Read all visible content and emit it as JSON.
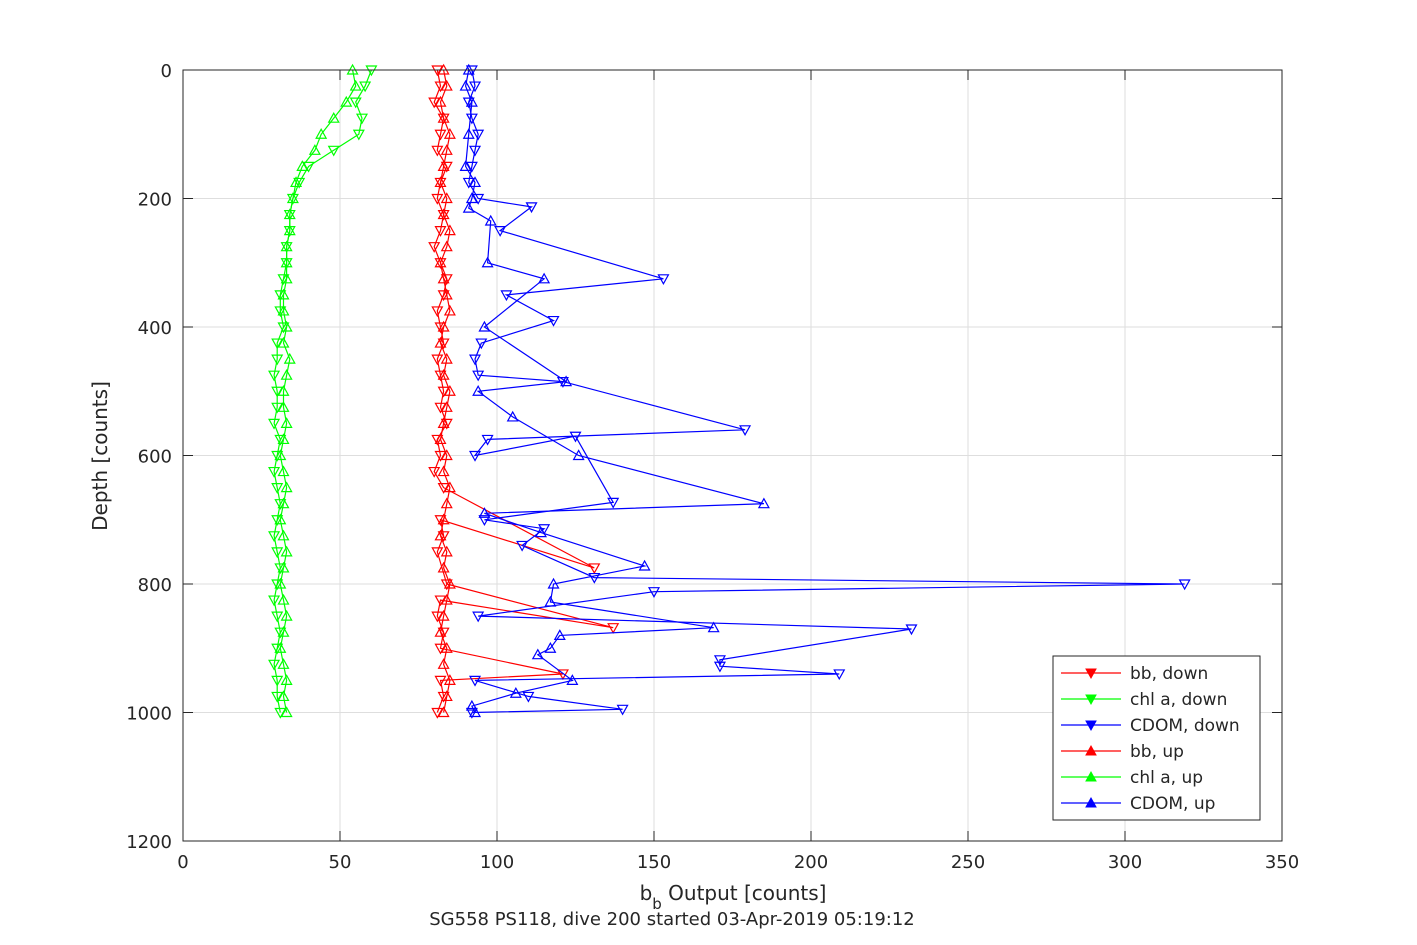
{
  "chart_data": {
    "type": "scatter",
    "title": "SG558 PS118, dive 200 started 03-Apr-2019 05:19:12",
    "xlabel_main": "b",
    "xlabel_sub": "b",
    "xlabel_rest": " Output [counts]",
    "ylabel": "Depth [counts]",
    "xlim": [
      0,
      350
    ],
    "ylim": [
      0,
      1200
    ],
    "y_reversed": true,
    "grid": true,
    "legend_position": "bottom-right",
    "x_ticks": [
      "0",
      "50",
      "100",
      "150",
      "200",
      "250",
      "300",
      "350"
    ],
    "y_ticks": [
      "0",
      "200",
      "400",
      "600",
      "800",
      "1000",
      "1200"
    ],
    "series": [
      {
        "name": "bb, down",
        "color": "#ff0000",
        "marker": "triangle-down",
        "x": [
          81,
          82,
          80,
          83,
          82,
          81,
          84,
          82,
          81,
          83,
          82,
          80,
          82,
          84,
          83,
          81,
          82,
          83,
          81,
          82,
          83,
          82,
          84,
          81,
          82,
          80,
          83,
          131,
          82,
          83,
          81,
          84,
          137,
          82,
          81,
          83,
          82,
          121,
          82,
          83,
          81
        ],
        "y": [
          0,
          25,
          50,
          75,
          100,
          125,
          150,
          175,
          200,
          225,
          250,
          275,
          300,
          325,
          350,
          375,
          400,
          425,
          450,
          475,
          500,
          525,
          550,
          575,
          600,
          625,
          650,
          775,
          700,
          725,
          750,
          800,
          868,
          825,
          850,
          875,
          900,
          940,
          950,
          975,
          1000
        ]
      },
      {
        "name": "chl a, down",
        "color": "#00ff00",
        "marker": "triangle-down",
        "x": [
          60,
          58,
          55,
          57,
          56,
          48,
          40,
          37,
          35,
          34,
          34,
          33,
          33,
          32,
          31,
          31,
          32,
          30,
          30,
          29,
          30,
          30,
          29,
          31,
          30,
          29,
          30,
          31,
          30,
          29,
          30,
          31,
          30,
          29,
          30,
          31,
          30,
          29,
          30,
          30,
          31
        ],
        "y": [
          0,
          25,
          50,
          75,
          100,
          125,
          150,
          175,
          200,
          225,
          250,
          275,
          300,
          325,
          350,
          375,
          400,
          425,
          450,
          475,
          500,
          525,
          550,
          575,
          600,
          625,
          650,
          675,
          700,
          725,
          750,
          775,
          800,
          825,
          850,
          875,
          900,
          925,
          950,
          975,
          1000
        ]
      },
      {
        "name": "CDOM, down",
        "color": "#0000ff",
        "marker": "triangle-down",
        "x": [
          92,
          93,
          91,
          92,
          94,
          93,
          92,
          91,
          94,
          111,
          101,
          153,
          103,
          118,
          95,
          93,
          94,
          121,
          179,
          97,
          93,
          125,
          137,
          96,
          115,
          108,
          131,
          319,
          150,
          94,
          232,
          171,
          171,
          209,
          93,
          110,
          140,
          92
        ],
        "y": [
          0,
          25,
          50,
          75,
          100,
          125,
          150,
          175,
          200,
          213,
          250,
          325,
          350,
          390,
          425,
          450,
          475,
          485,
          560,
          575,
          600,
          570,
          673,
          700,
          714,
          740,
          790,
          800,
          812,
          850,
          870,
          918,
          928,
          940,
          950,
          975,
          995,
          1000
        ]
      },
      {
        "name": "bb, up",
        "color": "#ff0000",
        "marker": "triangle-up",
        "x": [
          83,
          84,
          82,
          83,
          85,
          84,
          83,
          82,
          84,
          83,
          85,
          84,
          82,
          83,
          84,
          85,
          83,
          82,
          84,
          83,
          85,
          84,
          83,
          82,
          84,
          83,
          85,
          84,
          83,
          82,
          84,
          83,
          85,
          84,
          83,
          82,
          84,
          83,
          85,
          84,
          83
        ],
        "y": [
          0,
          25,
          50,
          75,
          100,
          125,
          150,
          175,
          200,
          225,
          250,
          275,
          300,
          325,
          350,
          375,
          400,
          425,
          450,
          475,
          500,
          525,
          550,
          575,
          600,
          625,
          650,
          675,
          700,
          725,
          750,
          775,
          800,
          825,
          850,
          875,
          900,
          925,
          950,
          975,
          1000
        ]
      },
      {
        "name": "chl a, up",
        "color": "#00ff00",
        "marker": "triangle-up",
        "x": [
          54,
          55,
          52,
          48,
          44,
          42,
          38,
          36,
          35,
          34,
          34,
          33,
          33,
          33,
          32,
          32,
          33,
          32,
          34,
          33,
          32,
          32,
          33,
          32,
          31,
          32,
          33,
          32,
          31,
          32,
          33,
          32,
          31,
          32,
          33,
          32,
          31,
          32,
          33,
          32,
          33
        ],
        "y": [
          0,
          25,
          50,
          75,
          100,
          125,
          150,
          175,
          200,
          225,
          250,
          275,
          300,
          325,
          350,
          375,
          400,
          425,
          450,
          475,
          500,
          525,
          550,
          575,
          600,
          625,
          650,
          675,
          700,
          725,
          750,
          775,
          800,
          825,
          850,
          875,
          900,
          925,
          950,
          975,
          1000
        ]
      },
      {
        "name": "CDOM, up",
        "color": "#0000ff",
        "marker": "triangle-up",
        "x": [
          91,
          90,
          92,
          91,
          90,
          93,
          92,
          91,
          98,
          97,
          115,
          96,
          122,
          94,
          105,
          126,
          185,
          96,
          114,
          147,
          118,
          117,
          169,
          120,
          117,
          113,
          124,
          106,
          92,
          93
        ],
        "y": [
          0,
          25,
          50,
          100,
          150,
          175,
          200,
          215,
          235,
          300,
          325,
          400,
          485,
          500,
          540,
          600,
          675,
          690,
          720,
          772,
          800,
          828,
          868,
          880,
          900,
          910,
          950,
          970,
          990,
          1000
        ]
      }
    ]
  }
}
